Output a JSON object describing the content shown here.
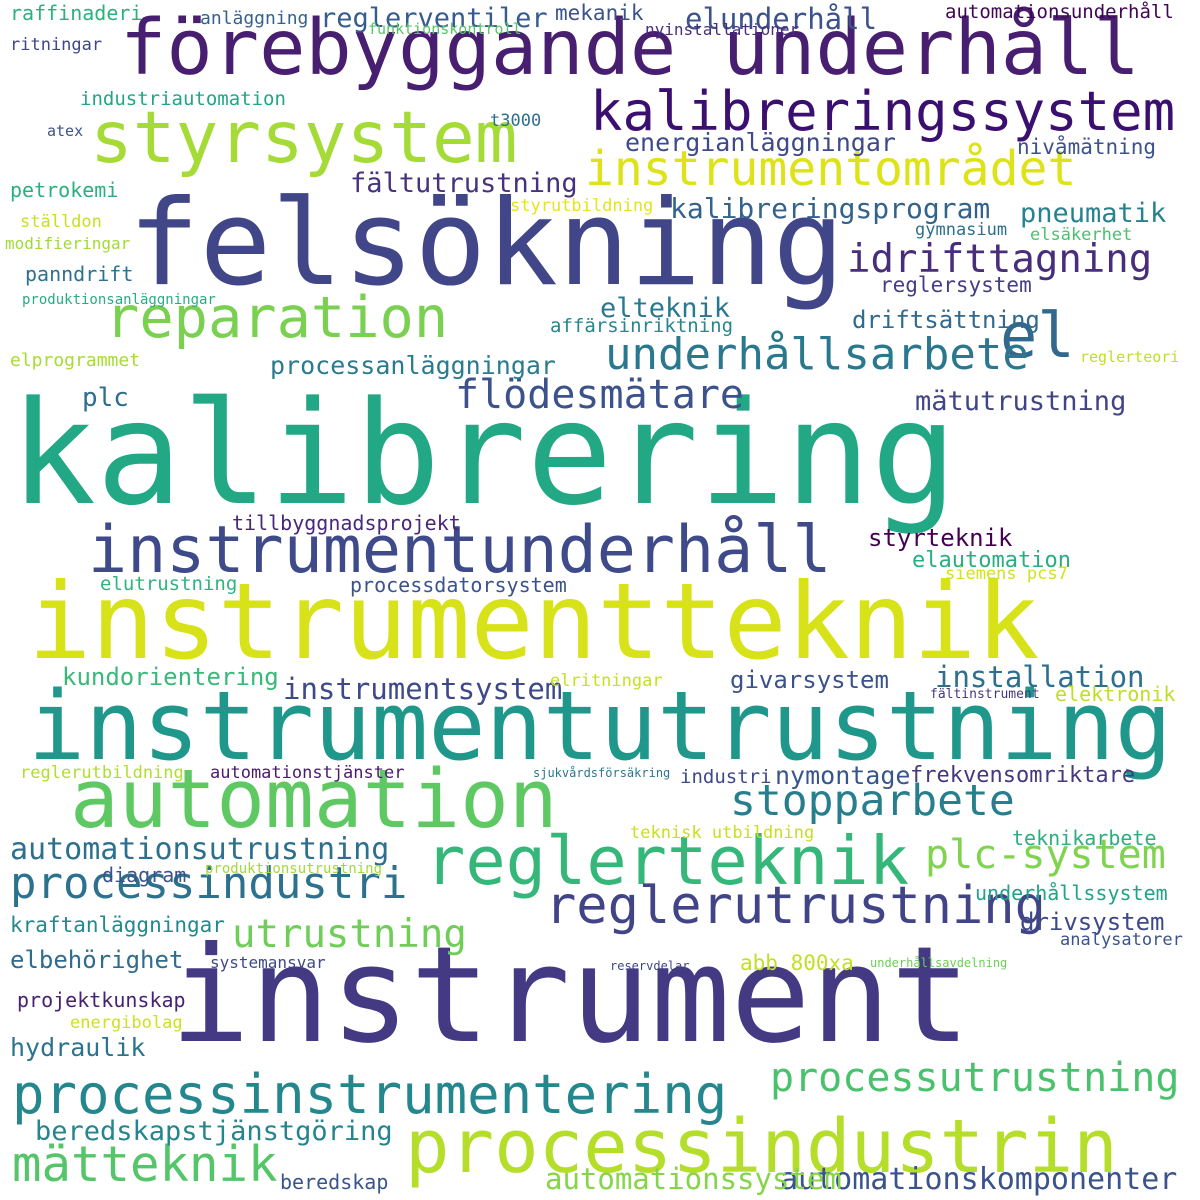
{
  "words": [
    {
      "text": "kalibrering",
      "color": "#22a884"
    },
    {
      "text": "instrumentteknik",
      "color": "#d8e219"
    },
    {
      "text": "instrument",
      "color": "#443a83"
    },
    {
      "text": "felsökning",
      "color": "#404688"
    },
    {
      "text": "instrumentutrustning",
      "color": "#1f988b"
    },
    {
      "text": "förebyggande underhåll",
      "color": "#481f70"
    },
    {
      "text": "automation",
      "color": "#5ec962"
    },
    {
      "text": "processindustrin",
      "color": "#b5de2b"
    },
    {
      "text": "instrumentunderhåll",
      "color": "#3e4a89"
    },
    {
      "text": "styrsystem",
      "color": "#a5db36"
    },
    {
      "text": "reglerteknik",
      "color": "#35b779"
    },
    {
      "text": "processinstrumentering",
      "color": "#24878e"
    },
    {
      "text": "reparation",
      "color": "#7ad151"
    },
    {
      "text": "kalibreringssystem",
      "color": "#3b0f70"
    },
    {
      "text": "instrumentområdet",
      "color": "#dde318"
    },
    {
      "text": "el",
      "color": "#31688e"
    },
    {
      "text": "reglerutrustning",
      "color": "#414487"
    },
    {
      "text": "processindustri",
      "color": "#2c728e"
    },
    {
      "text": "processutrustning",
      "color": "#4ac16d"
    },
    {
      "text": "mätteknik",
      "color": "#54c568"
    },
    {
      "text": "underhållsarbete",
      "color": "#2a788e"
    },
    {
      "text": "stopparbete",
      "color": "#277f8e"
    },
    {
      "text": "plc-system",
      "color": "#7fd34e"
    },
    {
      "text": "utrustning",
      "color": "#6ece58"
    },
    {
      "text": "flödesmätare",
      "color": "#3b528b"
    },
    {
      "text": "idrifttagning",
      "color": "#472d7b"
    },
    {
      "text": "automationsutrustning",
      "color": "#2d708e"
    },
    {
      "text": "automationskomponenter",
      "color": "#3a538b"
    },
    {
      "text": "automationssystem",
      "color": "#86d549"
    },
    {
      "text": "kalibreringsprogram",
      "color": "#33638d"
    },
    {
      "text": "beredskapstjänstgöring",
      "color": "#25848e"
    },
    {
      "text": "instrumentsystem",
      "color": "#3e4989"
    },
    {
      "text": "givarsystem",
      "color": "#3b528b"
    },
    {
      "text": "installation",
      "color": "#2e6e8e"
    },
    {
      "text": "kundorientering",
      "color": "#38b977"
    },
    {
      "text": "fältutrustning",
      "color": "#46327e"
    },
    {
      "text": "pneumatik",
      "color": "#26828e"
    },
    {
      "text": "mätutrustning",
      "color": "#414487"
    },
    {
      "text": "processanläggningar",
      "color": "#2a7b8e"
    },
    {
      "text": "reglerventiler",
      "color": "#365c8d"
    },
    {
      "text": "elunderhåll",
      "color": "#3b528b"
    },
    {
      "text": "nymontage",
      "color": "#39568c"
    },
    {
      "text": "frekvensomriktare",
      "color": "#453781"
    },
    {
      "text": "styrteknik",
      "color": "#440154"
    },
    {
      "text": "elautomation",
      "color": "#29af7f"
    },
    {
      "text": "elteknik",
      "color": "#2a788e"
    },
    {
      "text": "driftsättning",
      "color": "#306a8e"
    },
    {
      "text": "energianläggningar",
      "color": "#3e4a89"
    },
    {
      "text": "processdatorsystem",
      "color": "#3b528b"
    },
    {
      "text": "tillbyggnadsprojekt",
      "color": "#482878"
    },
    {
      "text": "hydraulik",
      "color": "#2c738e"
    },
    {
      "text": "elbehörighet",
      "color": "#2f6c8e"
    },
    {
      "text": "projektkunskap",
      "color": "#482173"
    },
    {
      "text": "diagram",
      "color": "#3b528b"
    },
    {
      "text": "kraftanläggningar",
      "color": "#23898e"
    },
    {
      "text": "underhållssystem",
      "color": "#20a386"
    },
    {
      "text": "drivsystem",
      "color": "#3e4989"
    },
    {
      "text": "teknikarbete",
      "color": "#2ab07f"
    },
    {
      "text": "industri",
      "color": "#3e4989"
    },
    {
      "text": "abb 800xa",
      "color": "#c2df23"
    },
    {
      "text": "elektronik",
      "color": "#bddf26"
    },
    {
      "text": "automationsunderhåll",
      "color": "#3e0751"
    },
    {
      "text": "raffinaderi",
      "color": "#2cb17e"
    },
    {
      "text": "mekanik",
      "color": "#3a538b"
    },
    {
      "text": "funktionskontroll",
      "color": "#56c667"
    },
    {
      "text": "industriautomation",
      "color": "#21a685"
    },
    {
      "text": "t3000",
      "color": "#2e6f8e"
    },
    {
      "text": "nivåmätning",
      "color": "#3b528b"
    },
    {
      "text": "petrokemi",
      "color": "#2ab07f"
    },
    {
      "text": "panndrift",
      "color": "#2c728e"
    },
    {
      "text": "plc",
      "color": "#2e6e8e"
    },
    {
      "text": "elprogrammet",
      "color": "#a8db34"
    },
    {
      "text": "elutrustning",
      "color": "#2fb47c"
    },
    {
      "text": "siemens pcs7",
      "color": "#d2e21b"
    },
    {
      "text": "elritningar",
      "color": "#c8e020"
    },
    {
      "text": "reglerutbildning",
      "color": "#b0dd2f"
    },
    {
      "text": "automationstjänster",
      "color": "#481b6d"
    },
    {
      "text": "sjukvårdsförsäkring",
      "color": "#2a788e"
    },
    {
      "text": "teknisk utbildning",
      "color": "#c8e020"
    },
    {
      "text": "produktionsutrustning",
      "color": "#a2da37"
    },
    {
      "text": "systemansvar",
      "color": "#3e4989"
    },
    {
      "text": "reservdelar",
      "color": "#404688"
    },
    {
      "text": "underhållsavdelning",
      "color": "#6ece58"
    },
    {
      "text": "analysatorer",
      "color": "#3b528b"
    },
    {
      "text": "energibolag",
      "color": "#cde11d"
    },
    {
      "text": "beredskap",
      "color": "#3a548c"
    },
    {
      "text": "anläggning",
      "color": "#33638d"
    },
    {
      "text": "nyinstallationer",
      "color": "#472f7d"
    },
    {
      "text": "ritningar",
      "color": "#404688"
    },
    {
      "text": "atex",
      "color": "#3a538b"
    },
    {
      "text": "styrutbildning",
      "color": "#e5e419"
    },
    {
      "text": "gymnasium",
      "color": "#2d708e"
    },
    {
      "text": "elsäkerhet",
      "color": "#4ac16d"
    },
    {
      "text": "reglersystem",
      "color": "#433e85"
    },
    {
      "text": "ställdon",
      "color": "#c8e020"
    },
    {
      "text": "modifieringar",
      "color": "#a0da39"
    },
    {
      "text": "produktionsanläggningar",
      "color": "#27ad81"
    },
    {
      "text": "affärsinriktning",
      "color": "#24868e"
    },
    {
      "text": "reglerteori",
      "color": "#bddf26"
    },
    {
      "text": "fältinstrument",
      "color": "#453882"
    }
  ]
}
